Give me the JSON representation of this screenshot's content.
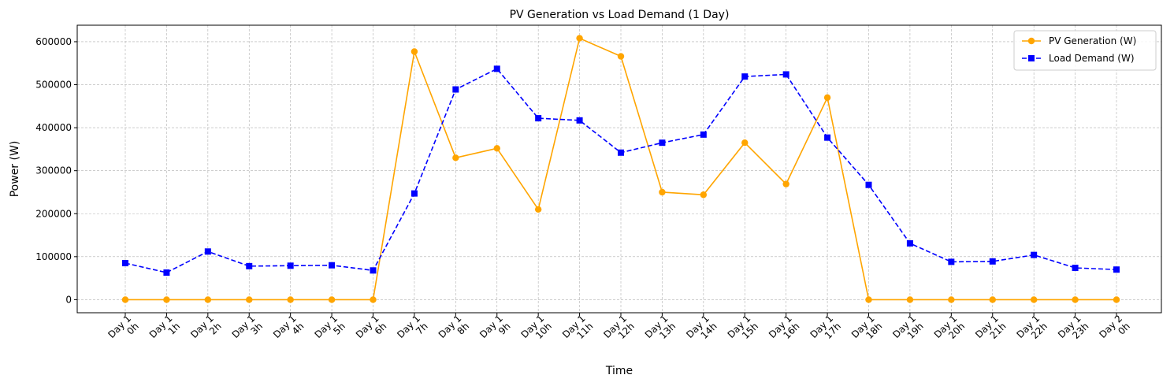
{
  "chart_data": {
    "type": "line",
    "title": "PV Generation vs Load Demand (1 Day)",
    "xlabel": "Time",
    "ylabel": "Power (W)",
    "categories": [
      "Day 1\n0h",
      "Day 1\n1h",
      "Day 1\n2h",
      "Day 1\n3h",
      "Day 1\n4h",
      "Day 1\n5h",
      "Day 1\n6h",
      "Day 1\n7h",
      "Day 1\n8h",
      "Day 1\n9h",
      "Day 1\n10h",
      "Day 1\n11h",
      "Day 1\n12h",
      "Day 1\n13h",
      "Day 1\n14h",
      "Day 1\n15h",
      "Day 1\n16h",
      "Day 1\n17h",
      "Day 1\n18h",
      "Day 1\n19h",
      "Day 1\n20h",
      "Day 1\n21h",
      "Day 1\n22h",
      "Day 1\n23h",
      "Day 2\n0h"
    ],
    "series": [
      {
        "name": "PV Generation (W)",
        "color": "#ffa500",
        "line_style": "solid",
        "marker": "circle",
        "values": [
          0,
          0,
          0,
          0,
          0,
          0,
          0,
          577000,
          330000,
          352000,
          210000,
          608000,
          566000,
          250000,
          244000,
          365000,
          269000,
          470000,
          0,
          0,
          0,
          0,
          0,
          0,
          0
        ]
      },
      {
        "name": "Load Demand (W)",
        "color": "#0000ff",
        "line_style": "dashed",
        "marker": "square",
        "values": [
          85000,
          63000,
          112000,
          78000,
          79000,
          80000,
          68000,
          247000,
          489000,
          537000,
          422000,
          417000,
          342000,
          365000,
          384000,
          519000,
          524000,
          377000,
          267000,
          131000,
          88000,
          89000,
          104000,
          74000,
          70000
        ]
      }
    ],
    "yticks": [
      0,
      100000,
      200000,
      300000,
      400000,
      500000,
      600000
    ],
    "ylim": [
      -30400,
      638400
    ],
    "grid": true,
    "legend_position": "top-right"
  }
}
